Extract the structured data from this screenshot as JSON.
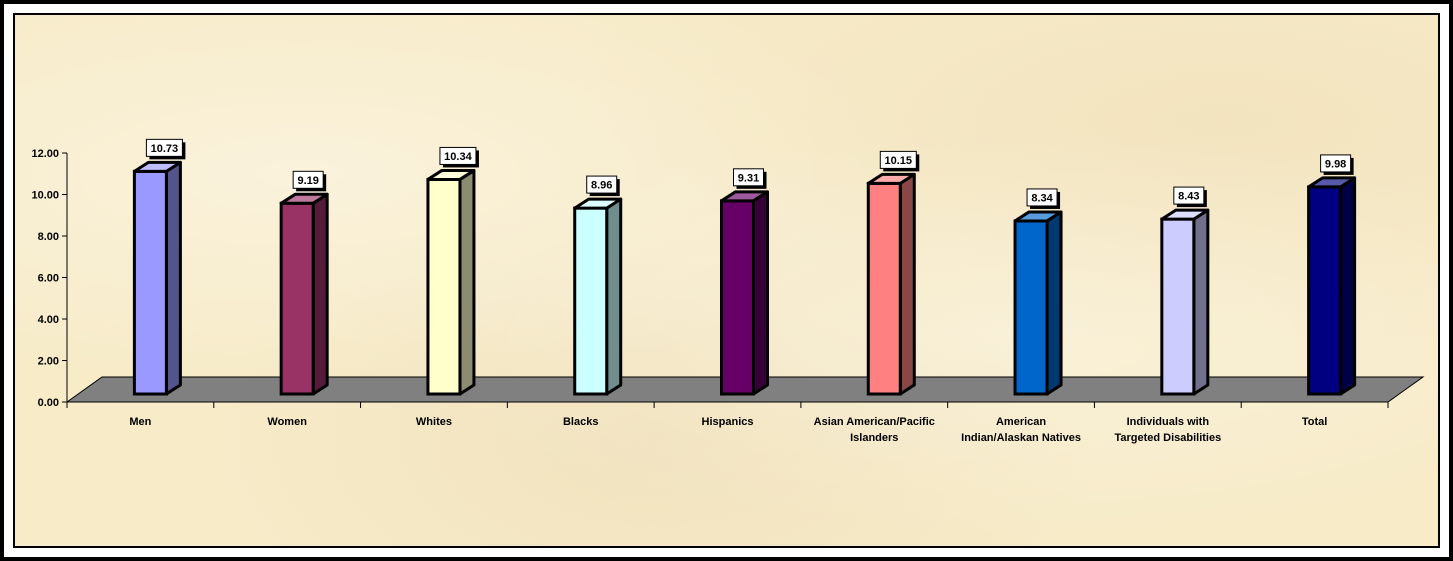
{
  "chart_data": {
    "type": "bar",
    "categories": [
      "Men",
      "Women",
      "Whites",
      "Blacks",
      "Hispanics",
      "Asian American/Pacific Islanders",
      "American Indian/Alaskan Natives",
      "Individuals with Targeted Disabilities",
      "Total"
    ],
    "category_lines": [
      [
        "Men"
      ],
      [
        "Women"
      ],
      [
        "Whites"
      ],
      [
        "Blacks"
      ],
      [
        "Hispanics"
      ],
      [
        "Asian American/Pacific",
        "Islanders"
      ],
      [
        "American",
        "Indian/Alaskan Natives"
      ],
      [
        "Individuals with",
        "Targeted Disabilities"
      ],
      [
        "Total"
      ]
    ],
    "values": [
      10.73,
      9.19,
      10.34,
      8.96,
      9.31,
      10.15,
      8.34,
      8.43,
      9.98
    ],
    "value_labels": [
      "10.73",
      "9.19",
      "10.34",
      "8.96",
      "9.31",
      "10.15",
      "8.34",
      "8.43",
      "9.98"
    ],
    "bar_colors": [
      "#9999ff",
      "#993366",
      "#ffffcc",
      "#ccffff",
      "#660066",
      "#ff8080",
      "#0066cc",
      "#ccccff",
      "#000080"
    ],
    "yticks": [
      "0.00",
      "2.00",
      "4.00",
      "6.00",
      "8.00",
      "10.00",
      "12.00"
    ],
    "ylim": [
      0,
      12
    ],
    "floor_color": "#808080",
    "title": "",
    "xlabel": "",
    "ylabel": "",
    "grid": false,
    "legend": "none"
  }
}
